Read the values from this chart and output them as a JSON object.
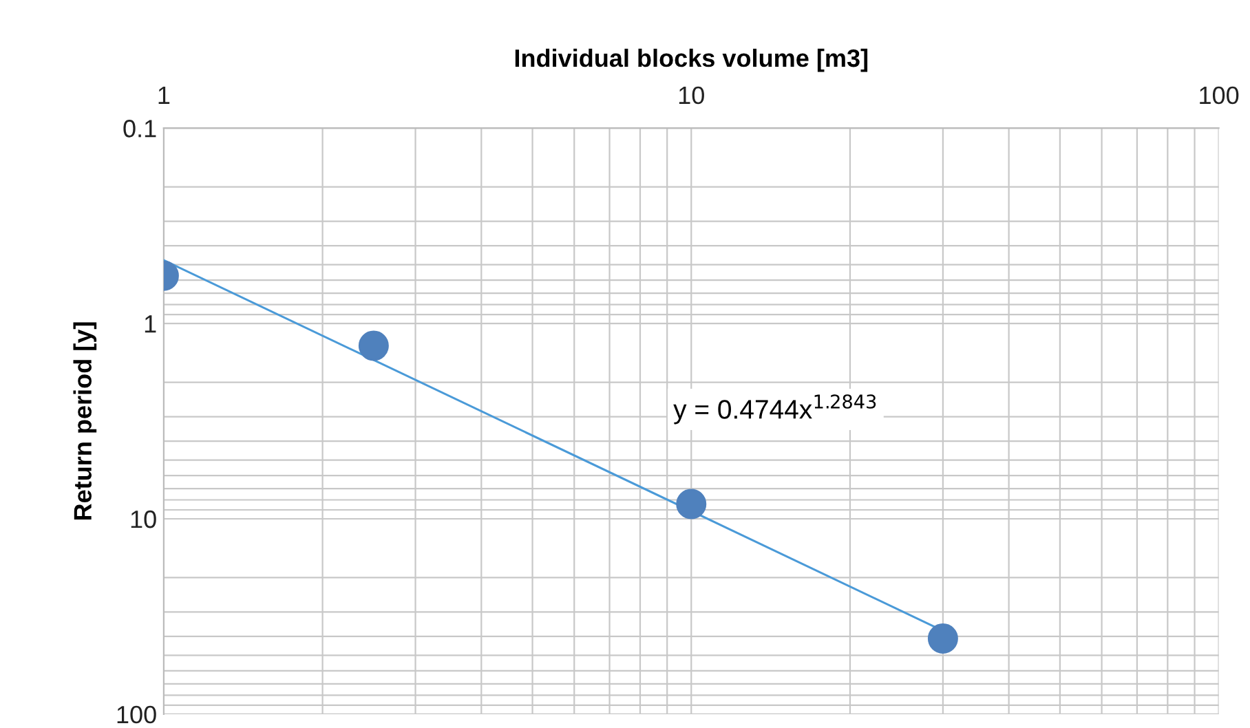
{
  "chart_data": {
    "type": "scatter",
    "xlabel": "Individual blocks volume [m3]",
    "ylabel": "Return period [y]",
    "log": "xy",
    "grid": true,
    "legend": false,
    "marker": "circle",
    "xlim": [
      1,
      100
    ],
    "xticks": [
      1,
      10,
      100
    ],
    "ylim": [
      100,
      0.1
    ],
    "yticks": [
      0.1,
      1,
      10,
      100
    ],
    "series": [
      {
        "color": "#4f81bd",
        "x": [
          1,
          2.5,
          10,
          30
        ],
        "values": [
          0.57,
          1.3,
          8.4,
          41
        ]
      },
      {
        "type": "line",
        "color": "#4a9ad8",
        "x": [
          1,
          30
        ],
        "values": [
          0.4744,
          37.4
        ],
        "marker": "none",
        "line_style": "solid"
      }
    ],
    "annotations": [
      "y = 0.4744x$^{1.2843}$"
    ]
  }
}
